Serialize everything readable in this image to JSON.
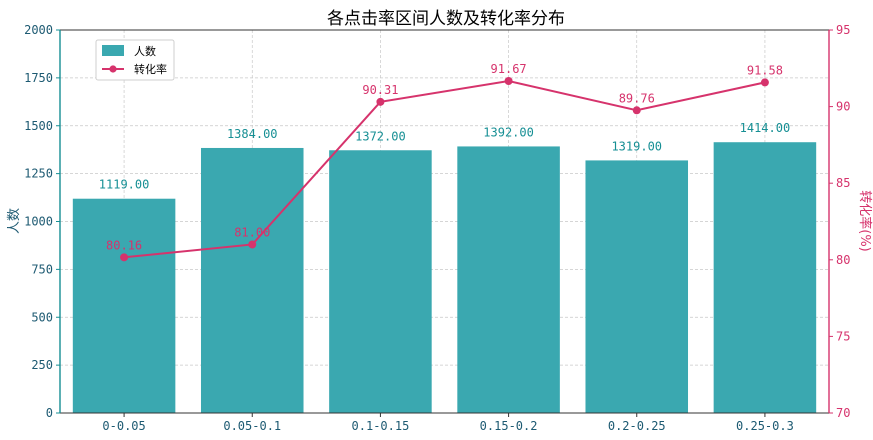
{
  "chart_data": {
    "type": "bar",
    "title": "各点击率区间人数及转化率分布",
    "xlabel": "",
    "ylabel": "人数",
    "y2label": "转化率(%)",
    "categories": [
      "0-0.05",
      "0.05-0.1",
      "0.1-0.15",
      "0.15-0.2",
      "0.2-0.25",
      "0.25-0.3"
    ],
    "ylim": [
      0,
      2000
    ],
    "y2lim": [
      70,
      95
    ],
    "yticks": [
      0,
      250,
      500,
      750,
      1000,
      1250,
      1500,
      1750,
      2000
    ],
    "y2ticks": [
      70,
      75,
      80,
      85,
      90,
      95
    ],
    "grid": true,
    "legend_position": "upper-left",
    "series": [
      {
        "name": "人数",
        "type": "bar",
        "axis": "left",
        "color": "#3aa8b0",
        "values": [
          1119.0,
          1384.0,
          1372.0,
          1392.0,
          1319.0,
          1414.0
        ],
        "labels": [
          "1119.00",
          "1384.00",
          "1372.00",
          "1392.00",
          "1319.00",
          "1414.00"
        ]
      },
      {
        "name": "转化率",
        "type": "line",
        "axis": "right",
        "color": "#d6336c",
        "values": [
          80.16,
          81.0,
          90.31,
          91.67,
          89.76,
          91.58
        ],
        "labels": [
          "80.16",
          "81.00",
          "90.31",
          "91.67",
          "89.76",
          "91.58"
        ]
      }
    ]
  }
}
